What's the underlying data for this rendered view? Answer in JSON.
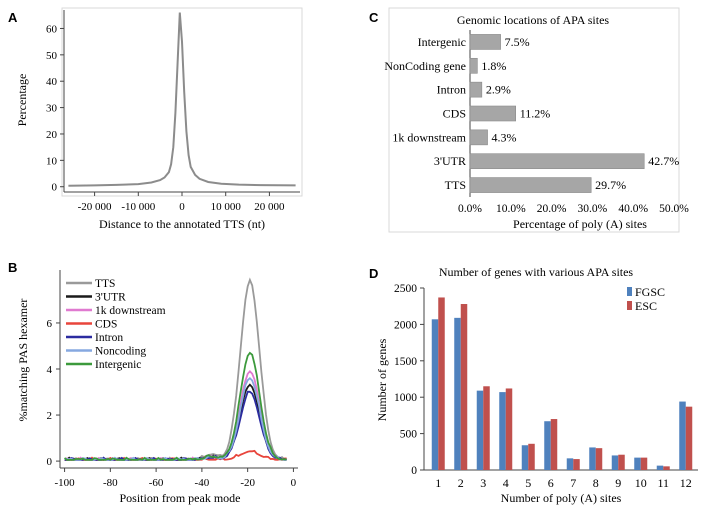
{
  "chart_data": [
    {
      "panel": "A",
      "type": "line",
      "title": "",
      "xlabel": "Distance to the annotated TTS (nt)",
      "ylabel": "Percentage",
      "xlim": [
        -27000,
        27000
      ],
      "ylim": [
        -2,
        67
      ],
      "xticks": [
        -20000,
        -10000,
        0,
        10000,
        20000
      ],
      "xtick_labels": [
        "-20 000",
        "-10 000",
        "0",
        "10 000",
        "20 000"
      ],
      "yticks": [
        0,
        10,
        20,
        30,
        40,
        50,
        60
      ],
      "ytick_labels": [
        "0",
        "10",
        "20",
        "30",
        "40",
        "50",
        "60"
      ],
      "grid": false,
      "series": [
        {
          "color": "#8c8c8c",
          "x": [
            -26000,
            -20000,
            -15000,
            -10000,
            -7000,
            -5000,
            -4000,
            -3000,
            -2500,
            -2000,
            -1500,
            -1000,
            -500,
            0,
            500,
            1000,
            1500,
            2000,
            3000,
            4000,
            6000,
            9000,
            13000,
            18000,
            26000
          ],
          "y": [
            0.4,
            0.5,
            0.7,
            1.0,
            1.6,
            2.5,
            3.5,
            5.5,
            8.5,
            15,
            28,
            47,
            66,
            55,
            36,
            21,
            12,
            7.5,
            4.5,
            3.0,
            1.8,
            1.1,
            0.8,
            0.6,
            0.5
          ]
        }
      ]
    },
    {
      "panel": "B",
      "type": "line",
      "title": "",
      "xlabel": "Position from peak mode",
      "ylabel": "%matching PAS hexamer",
      "xlim": [
        -102,
        2
      ],
      "ylim": [
        -0.3,
        8.3
      ],
      "xticks": [
        -100,
        -80,
        -60,
        -40,
        -20,
        0
      ],
      "xtick_labels": [
        "-100",
        "-80",
        "-60",
        "-40",
        "-20",
        "0"
      ],
      "yticks": [
        0,
        2,
        4,
        6
      ],
      "ytick_labels": [
        "0",
        "2",
        "4",
        "6"
      ],
      "legend": "top-left",
      "grid": false,
      "series": [
        {
          "name": "TTS",
          "color": "#9a9a9a",
          "peak": 7.8
        },
        {
          "name": "3'UTR",
          "color": "#1a1a1a",
          "peak": 3.3
        },
        {
          "name": "1k downstream",
          "color": "#e07ad0",
          "peak": 3.9
        },
        {
          "name": "CDS",
          "color": "#e8453c",
          "peak": 0.4
        },
        {
          "name": "Intron",
          "color": "#2b2ba0",
          "peak": 3.0
        },
        {
          "name": "Noncoding",
          "color": "#86a8e0",
          "peak": 3.6
        },
        {
          "name": "Intergenic",
          "color": "#3c9a3c",
          "peak": 4.7
        }
      ]
    },
    {
      "panel": "C",
      "type": "bar",
      "orientation": "horizontal",
      "title": "Genomic locations of APA sites",
      "xlabel": "Percentage of poly (A) sites",
      "ylabel": "",
      "xlim": [
        0,
        50
      ],
      "xticks": [
        0,
        10,
        20,
        30,
        40,
        50
      ],
      "xtick_labels": [
        "0.0%",
        "10.0%",
        "20.0%",
        "30.0%",
        "40.0%",
        "50.0%"
      ],
      "categories": [
        "Intergenic",
        "NonCoding gene",
        "Intron",
        "CDS",
        "1k downstream",
        "3'UTR",
        "TTS"
      ],
      "values": [
        7.5,
        1.8,
        2.9,
        11.2,
        4.3,
        42.7,
        29.7
      ],
      "value_labels": [
        "7.5%",
        "1.8%",
        "2.9%",
        "11.2%",
        "4.3%",
        "42.7%",
        "29.7%"
      ],
      "bar_color": "#a6a6a6"
    },
    {
      "panel": "D",
      "type": "bar",
      "title": "Number of genes with various  APA sites",
      "xlabel": "Number of poly (A) sites",
      "ylabel": "Number of genes",
      "ylim": [
        0,
        2500
      ],
      "yticks": [
        0,
        500,
        1000,
        1500,
        2000,
        2500
      ],
      "ytick_labels": [
        "0",
        "500",
        "1000",
        "1500",
        "2000",
        "2500"
      ],
      "legend": "top-right",
      "categories": [
        "1",
        "2",
        "3",
        "4",
        "5",
        "6",
        "7",
        "8",
        "9",
        "10",
        "11",
        "12"
      ],
      "series": [
        {
          "name": "FGSC",
          "color": "#4f81bd",
          "values": [
            2070,
            2090,
            1090,
            1070,
            340,
            670,
            160,
            310,
            200,
            170,
            60,
            940
          ]
        },
        {
          "name": "ESC",
          "color": "#c0504d",
          "values": [
            2370,
            2280,
            1150,
            1120,
            360,
            700,
            150,
            300,
            210,
            170,
            50,
            870
          ]
        }
      ]
    }
  ],
  "panel_letters": {
    "a": "A",
    "b": "B",
    "c": "C",
    "d": "D"
  },
  "colors": {
    "axis": "#444444",
    "text": "#222222",
    "frame": "#d9d9d9"
  }
}
